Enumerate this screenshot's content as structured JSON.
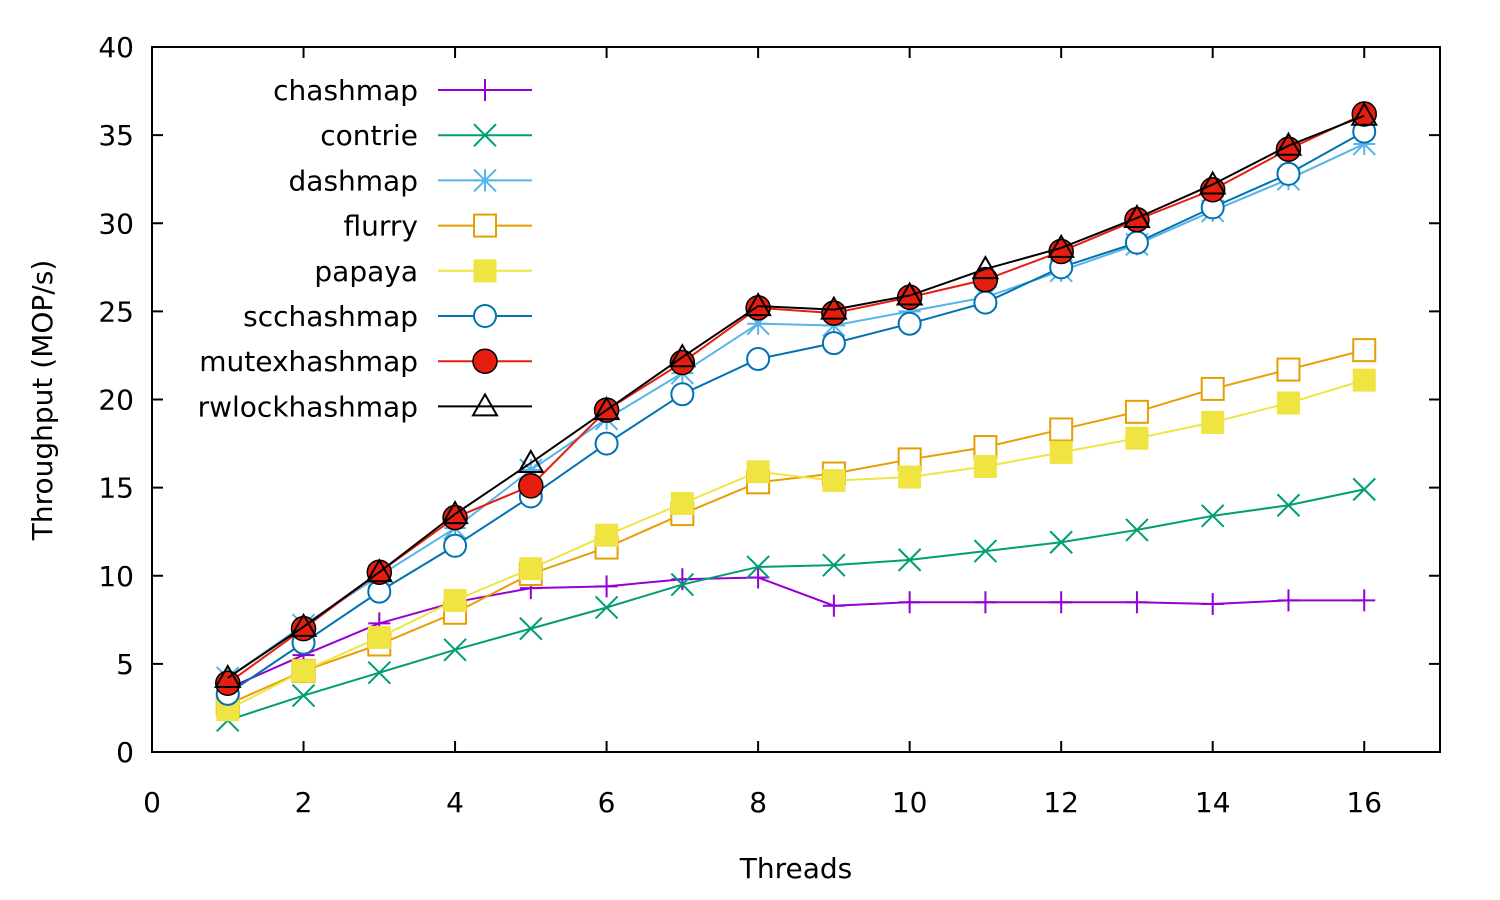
{
  "chart_data": {
    "type": "line",
    "title": "",
    "xlabel": "Threads",
    "ylabel": "Throughput (MOP/s)",
    "xlim": [
      0,
      17
    ],
    "ylim": [
      0,
      40
    ],
    "xticks": [
      0,
      2,
      4,
      6,
      8,
      10,
      12,
      14,
      16
    ],
    "yticks": [
      0,
      5,
      10,
      15,
      20,
      25,
      30,
      35,
      40
    ],
    "grid": false,
    "legend_position": "top-left",
    "x": [
      1,
      2,
      3,
      4,
      5,
      6,
      7,
      8,
      9,
      10,
      11,
      12,
      13,
      14,
      15,
      16
    ],
    "series": [
      {
        "name": "chashmap",
        "color": "#9400d3",
        "marker": "plus",
        "values": [
          3.6,
          5.5,
          7.3,
          8.5,
          9.3,
          9.4,
          9.8,
          9.9,
          8.3,
          8.5,
          8.5,
          8.5,
          8.5,
          8.4,
          8.6,
          8.6
        ]
      },
      {
        "name": "contrie",
        "color": "#009e73",
        "marker": "cross",
        "values": [
          1.8,
          3.2,
          4.5,
          5.8,
          7.0,
          8.2,
          9.5,
          10.5,
          10.6,
          10.9,
          11.4,
          11.9,
          12.6,
          13.4,
          14.0,
          14.9
        ]
      },
      {
        "name": "dashmap",
        "color": "#56b4e9",
        "marker": "star",
        "values": [
          4.2,
          7.2,
          10.0,
          12.7,
          16.0,
          18.9,
          21.5,
          24.3,
          24.2,
          25.0,
          25.8,
          27.3,
          28.8,
          30.7,
          32.5,
          34.5
        ]
      },
      {
        "name": "flurry",
        "color": "#e69f00",
        "marker": "box",
        "values": [
          2.7,
          4.6,
          6.1,
          7.9,
          10.1,
          11.6,
          13.5,
          15.3,
          15.8,
          16.6,
          17.3,
          18.3,
          19.3,
          20.6,
          21.7,
          22.8
        ]
      },
      {
        "name": "papaya",
        "color": "#f0e442",
        "marker": "filled-box",
        "values": [
          2.4,
          4.6,
          6.5,
          8.6,
          10.4,
          12.3,
          14.1,
          15.9,
          15.4,
          15.6,
          16.2,
          17.0,
          17.8,
          18.7,
          19.8,
          21.1
        ]
      },
      {
        "name": "scchashmap",
        "color": "#0072b2",
        "marker": "circle",
        "values": [
          3.3,
          6.2,
          9.1,
          11.7,
          14.5,
          17.5,
          20.3,
          22.3,
          23.2,
          24.3,
          25.5,
          27.5,
          28.9,
          30.9,
          32.8,
          35.2
        ]
      },
      {
        "name": "mutexhashmap",
        "color": "#e51e10",
        "marker": "filled-circle",
        "values": [
          3.9,
          7.0,
          10.2,
          13.3,
          15.1,
          19.4,
          22.1,
          25.2,
          24.9,
          25.8,
          26.8,
          28.4,
          30.2,
          31.9,
          34.2,
          36.2
        ]
      },
      {
        "name": "rwlockhashmap",
        "color": "#000000",
        "marker": "triangle",
        "values": [
          4.2,
          7.1,
          10.2,
          13.5,
          16.4,
          19.4,
          22.4,
          25.3,
          25.1,
          25.9,
          27.4,
          28.6,
          30.3,
          32.2,
          34.4,
          36.1
        ]
      }
    ]
  }
}
